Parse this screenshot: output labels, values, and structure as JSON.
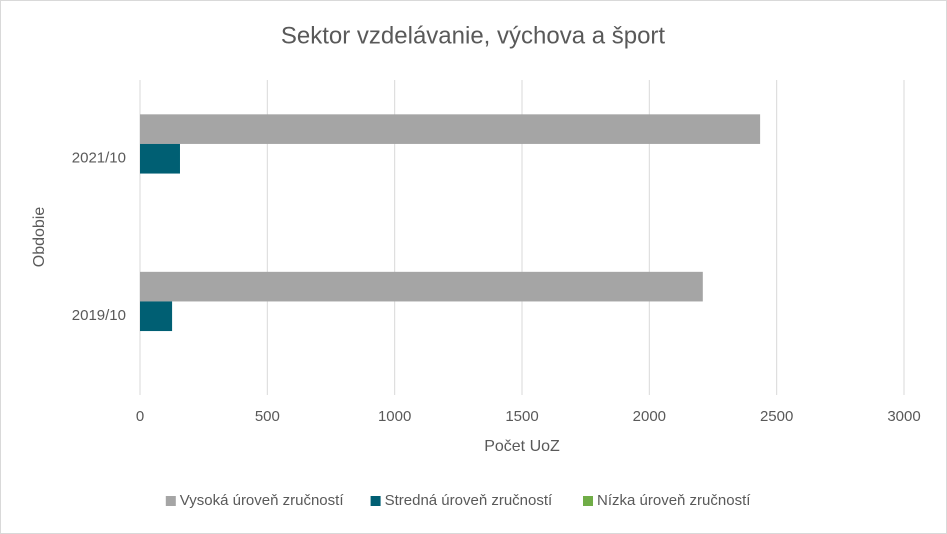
{
  "chart_data": {
    "type": "bar",
    "orientation": "horizontal",
    "title": "Sektor vzdelávanie, výchova a šport",
    "x_label": "Počet UoZ",
    "y_label": "Obdobie",
    "categories": [
      "2019/10",
      "2021/10"
    ],
    "series": [
      {
        "name": "Vysoká úroveň zručností",
        "color": "#a5a5a5",
        "values": [
          2210,
          2435
        ]
      },
      {
        "name": "Stredná úroveň zručností",
        "color": "#005f73",
        "values": [
          126,
          157
        ]
      },
      {
        "name": "Nízka úroveň zručností",
        "color": "#70ad47",
        "values": [
          0,
          0
        ]
      }
    ],
    "xlim": [
      0,
      3000
    ],
    "xticks": [
      0,
      500,
      1000,
      1500,
      2000,
      2500,
      3000
    ],
    "grid": true,
    "legend": "bottom"
  }
}
